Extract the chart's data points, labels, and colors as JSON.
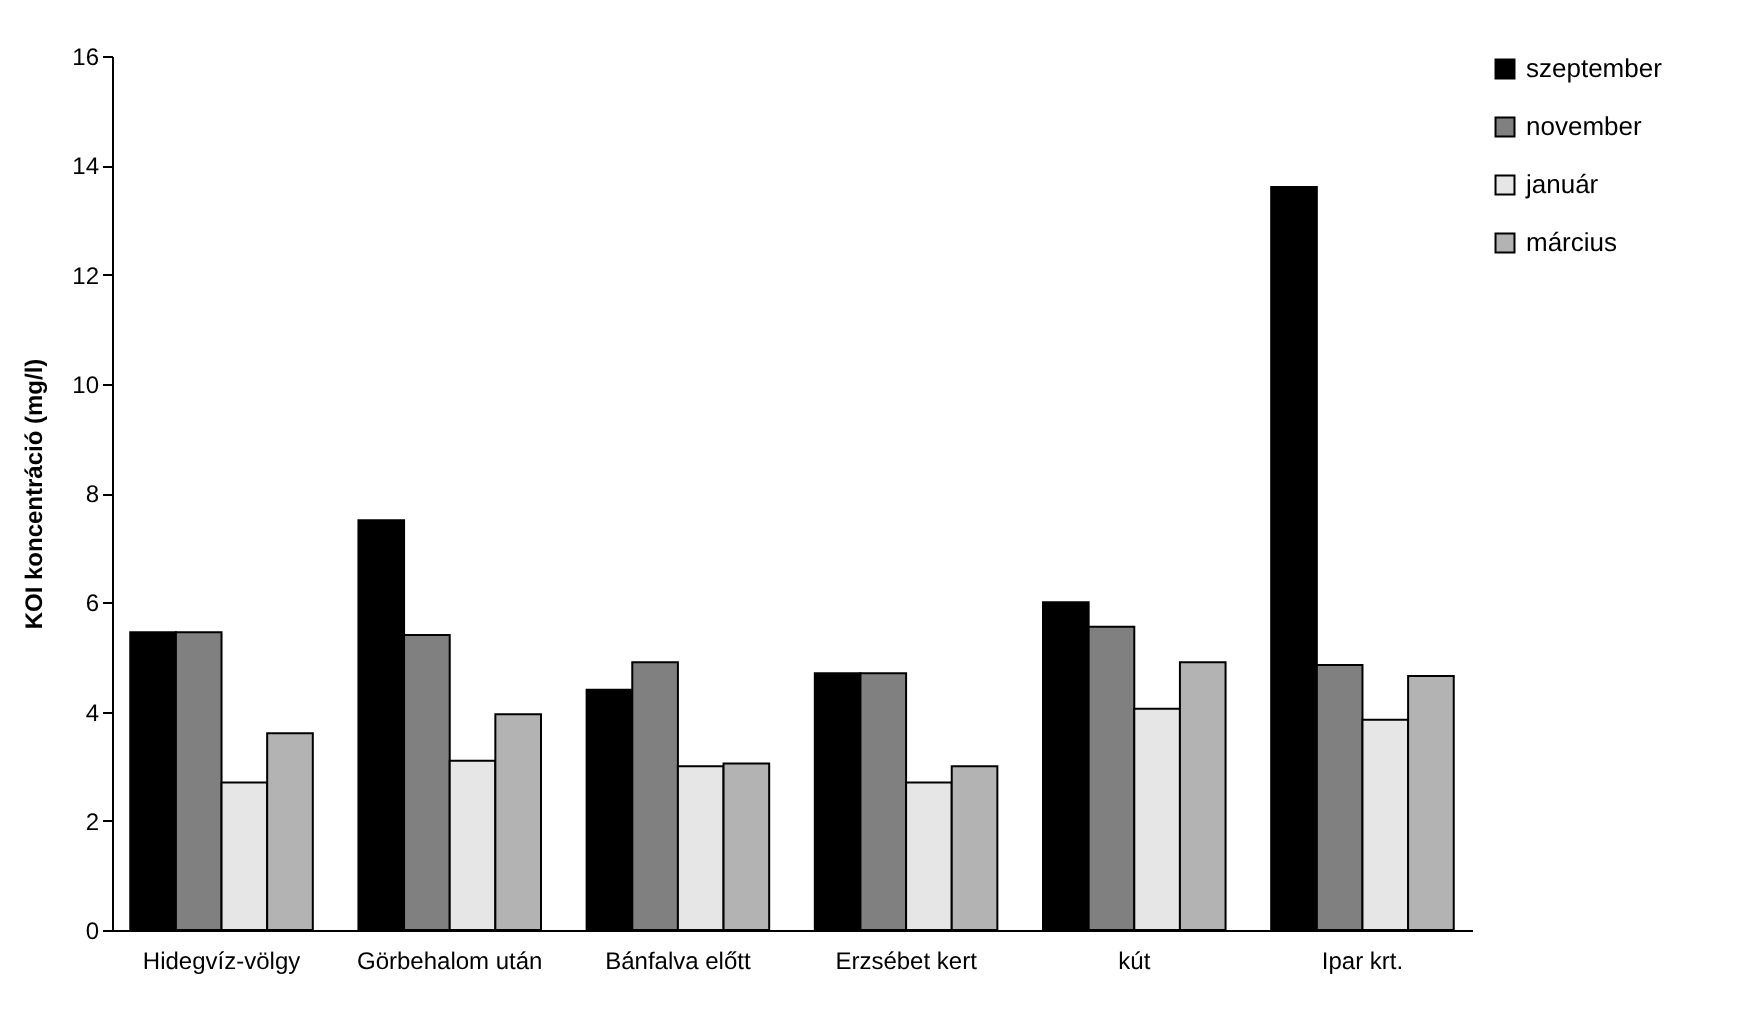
{
  "chart_data": {
    "type": "bar",
    "ylabel": "KOI koncentráció (mg/l)",
    "categories": [
      "Hidegvíz-völgy",
      "Görbehalom után",
      "Bánfalva előtt",
      "Erzsébet kert",
      "kút",
      "Ipar krt."
    ],
    "series": [
      {
        "name": "szeptember",
        "color": "#000000",
        "values": [
          5.45,
          7.5,
          4.4,
          4.7,
          6.0,
          13.6
        ]
      },
      {
        "name": "november",
        "color": "#808080",
        "values": [
          5.45,
          5.4,
          4.9,
          4.7,
          5.55,
          4.85
        ]
      },
      {
        "name": "január",
        "color": "#e6e6e6",
        "values": [
          2.7,
          3.1,
          3.0,
          2.7,
          4.05,
          3.85
        ]
      },
      {
        "name": "március",
        "color": "#b3b3b3",
        "values": [
          3.6,
          3.95,
          3.05,
          3.0,
          4.9,
          4.65
        ]
      }
    ],
    "ylim": [
      0,
      16
    ],
    "yticks": [
      0,
      2,
      4,
      6,
      8,
      10,
      12,
      14,
      16
    ],
    "grid": false,
    "legend": "top right"
  }
}
